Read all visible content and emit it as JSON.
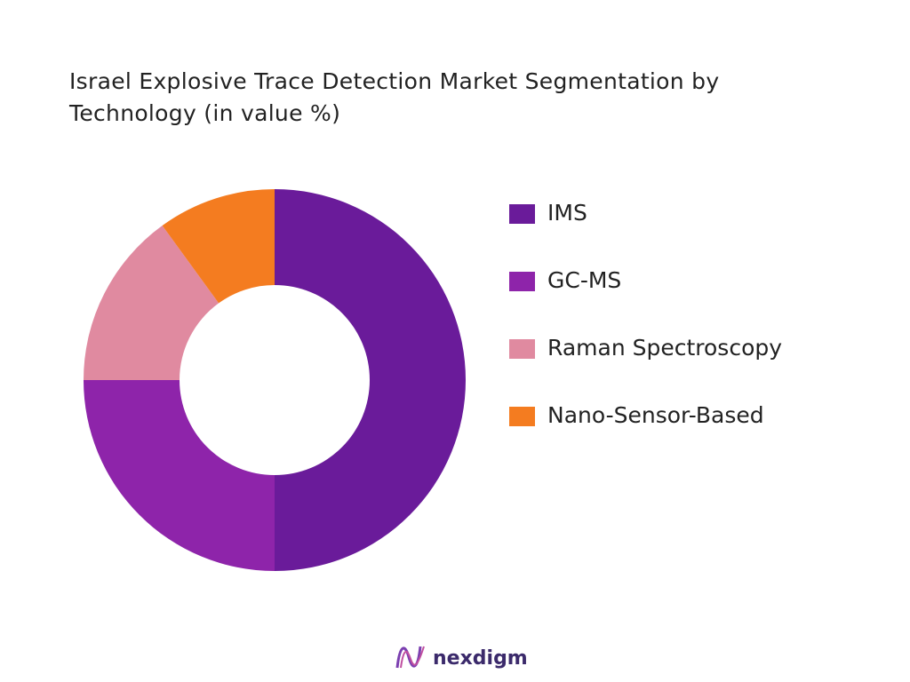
{
  "chart_data": {
    "type": "donut",
    "title": "Israel Explosive Trace Detection Market Segmentation by Technology (in value %)",
    "categories": [
      "IMS",
      "GC-MS",
      "Raman Spectroscopy",
      "Nano-Sensor-Based"
    ],
    "values": [
      50,
      25,
      15,
      10
    ],
    "colors": [
      "#6a1b9a",
      "#8e24aa",
      "#e08aa0",
      "#f47c20"
    ],
    "legend": "right"
  },
  "brand": "nexdigm"
}
